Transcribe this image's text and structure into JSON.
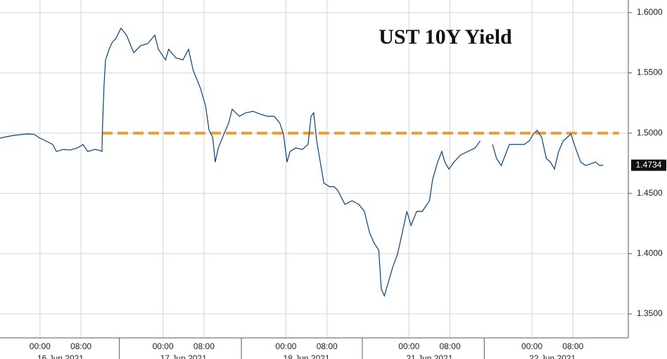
{
  "chart_data": {
    "type": "line",
    "title": "UST 10Y Yield",
    "x": [
      -7.8,
      -5.1,
      -2.3,
      -1.0,
      -0.3,
      1.1,
      2.5,
      3.2,
      4.5,
      5.9,
      7.3,
      8.4,
      9.3,
      10.7,
      11.4,
      12.1,
      12.2,
      12.5,
      12.8,
      13.5,
      14.1,
      14.8,
      15.8,
      16.9,
      18.3,
      19.6,
      21.0,
      22.4,
      23.1,
      24.5,
      25.1,
      26.5,
      27.9,
      29.0,
      29.9,
      31.3,
      32.3,
      33.0,
      33.7,
      34.2,
      34.8,
      35.9,
      36.8,
      37.5,
      38.9,
      40.2,
      41.6,
      43.0,
      44.4,
      45.7,
      46.8,
      47.5,
      48.2,
      48.8,
      49.9,
      51.2,
      52.3,
      52.9,
      53.4,
      54.0,
      54.7,
      55.4,
      56.5,
      57.4,
      58.1,
      59.5,
      60.9,
      62.2,
      63.3,
      64.3,
      65.2,
      66.1,
      66.6,
      67.2,
      68.0,
      68.8,
      69.8,
      70.7,
      71.6,
      72.4,
      73.5,
      74.6,
      76.0,
      76.6,
      77.6,
      78.4,
      79.0,
      79.8,
      80.8,
      82.1,
      83.5,
      84.9,
      85.9,
      86.5,
      88.3,
      89.1,
      90.0,
      90.8,
      91.6,
      93.1,
      94.5,
      95.5,
      96.3,
      97.0,
      97.9,
      98.8,
      99.6,
      100.4,
      101.2,
      102.1,
      102.9,
      103.6,
      104.5,
      105.5,
      106.5,
      107.6,
      108.4,
      109.2,
      109.9
    ],
    "series": [
      {
        "name": "UST 10Y Yield",
        "color": "#1f6fbf",
        "values": [
          1.4959,
          1.4982,
          1.4994,
          1.4988,
          1.4965,
          1.4936,
          1.4906,
          1.4848,
          1.4865,
          1.486,
          1.4877,
          1.4906,
          1.4848,
          1.4865,
          1.486,
          1.4848,
          1.5053,
          1.5404,
          1.5608,
          1.5696,
          1.5754,
          1.5784,
          1.5871,
          1.5813,
          1.5667,
          1.5725,
          1.5743,
          1.5813,
          1.5696,
          1.5608,
          1.5696,
          1.5626,
          1.5608,
          1.5696,
          1.552,
          1.5374,
          1.5228,
          1.5023,
          1.4965,
          1.476,
          1.4877,
          1.4994,
          1.5082,
          1.5199,
          1.514,
          1.517,
          1.5181,
          1.5158,
          1.514,
          1.514,
          1.5082,
          1.4994,
          1.476,
          1.4848,
          1.4877,
          1.4865,
          1.4906,
          1.514,
          1.517,
          1.4936,
          1.476,
          1.4585,
          1.4556,
          1.4556,
          1.4526,
          1.4409,
          1.4439,
          1.4409,
          1.4351,
          1.4175,
          1.4088,
          1.4029,
          1.3708,
          1.3649,
          1.3766,
          1.3883,
          1.4,
          1.4175,
          1.4351,
          1.4234,
          1.4351,
          1.4351,
          1.4439,
          1.4614,
          1.476,
          1.4848,
          1.476,
          1.4702,
          1.476,
          1.4819,
          1.4848,
          1.4877,
          1.4936,
          null,
          1.4906,
          1.4789,
          1.4731,
          1.4819,
          1.4906,
          1.4906,
          1.4906,
          1.4936,
          1.4994,
          1.5023,
          1.4965,
          1.4789,
          1.476,
          1.4702,
          1.4848,
          1.4936,
          1.4965,
          1.4994,
          1.4877,
          1.476,
          1.4731,
          1.4748,
          1.476,
          1.4731,
          1.4734
        ]
      }
    ],
    "xlim": [
      -7.8,
      114.8
    ],
    "ylim": [
      1.3301,
      1.6105
    ],
    "xticks": [
      {
        "value": 0,
        "label": "00:00"
      },
      {
        "value": 8,
        "label": "08:00"
      },
      {
        "value": 24,
        "label": "00:00"
      },
      {
        "value": 32,
        "label": "08:00"
      },
      {
        "value": 48,
        "label": "00:00"
      },
      {
        "value": 56,
        "label": "08:00"
      },
      {
        "value": 72,
        "label": "00:00"
      },
      {
        "value": 80,
        "label": "08:00"
      },
      {
        "value": 96,
        "label": "00:00"
      },
      {
        "value": 104,
        "label": "08:00"
      }
    ],
    "yticks": [
      {
        "value": 1.35,
        "label": "1.3500"
      },
      {
        "value": 1.4,
        "label": "1.4000"
      },
      {
        "value": 1.45,
        "label": "1.4500"
      },
      {
        "value": 1.5,
        "label": "1.5000"
      },
      {
        "value": 1.55,
        "label": "1.5500"
      },
      {
        "value": 1.6,
        "label": "1.6000"
      }
    ],
    "date_labels": [
      {
        "value": 4,
        "label": "16 Jun 2021"
      },
      {
        "value": 28,
        "label": "17 Jun 2021"
      },
      {
        "value": 52,
        "label": "18 Jun 2021"
      },
      {
        "value": 76,
        "label": "21 Jun 2021"
      },
      {
        "value": 100,
        "label": "22 Jun 2021"
      }
    ],
    "day_breaks": [
      15.5,
      39.3,
      62.9,
      86.7
    ],
    "reference_line": {
      "value": 1.5,
      "from": 12.1,
      "to": 113.0,
      "color": "#f39a32"
    },
    "last_value": 1.4734,
    "grid": true
  }
}
